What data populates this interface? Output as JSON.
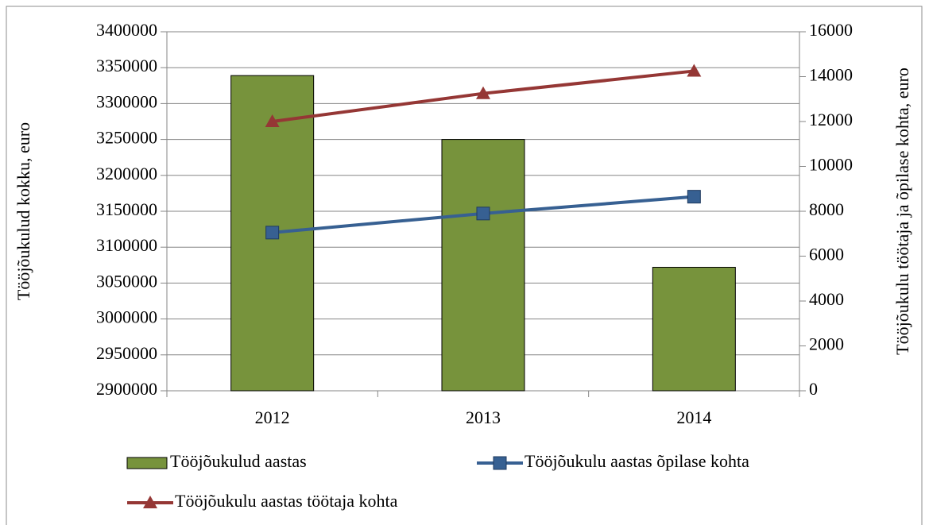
{
  "chart_data": {
    "type": "combo",
    "categories": [
      "2012",
      "2013",
      "2014"
    ],
    "y_label": "Tööjõukulud kokku, euro",
    "y2_label": "Tööjõukulu töötaja ja õpilase kohta, euro",
    "ylim": [
      2900000,
      3400000
    ],
    "yticks": [
      2900000,
      2950000,
      3000000,
      3050000,
      3100000,
      3150000,
      3200000,
      3250000,
      3300000,
      3350000,
      3400000
    ],
    "y2lim": [
      0,
      16000
    ],
    "y2ticks": [
      0,
      2000,
      4000,
      6000,
      8000,
      10000,
      12000,
      14000,
      16000
    ],
    "grid": true,
    "legend": "bottom",
    "series": [
      {
        "name": "Tööjõukulud aastas",
        "type": "bar",
        "color": "#77933c",
        "values": [
          3339000,
          3250000,
          3072000
        ]
      },
      {
        "name": "Tööjõukulu aastas õpilase kohta",
        "type": "line",
        "marker": "square",
        "axis": "y2",
        "color": "#376092",
        "values": [
          7050,
          7900,
          8650
        ]
      },
      {
        "name": "Tööjõukulu aastas töötaja kohta",
        "type": "line",
        "marker": "triangle",
        "axis": "y2",
        "color": "#953735",
        "values": [
          12000,
          13250,
          14250
        ]
      }
    ]
  }
}
